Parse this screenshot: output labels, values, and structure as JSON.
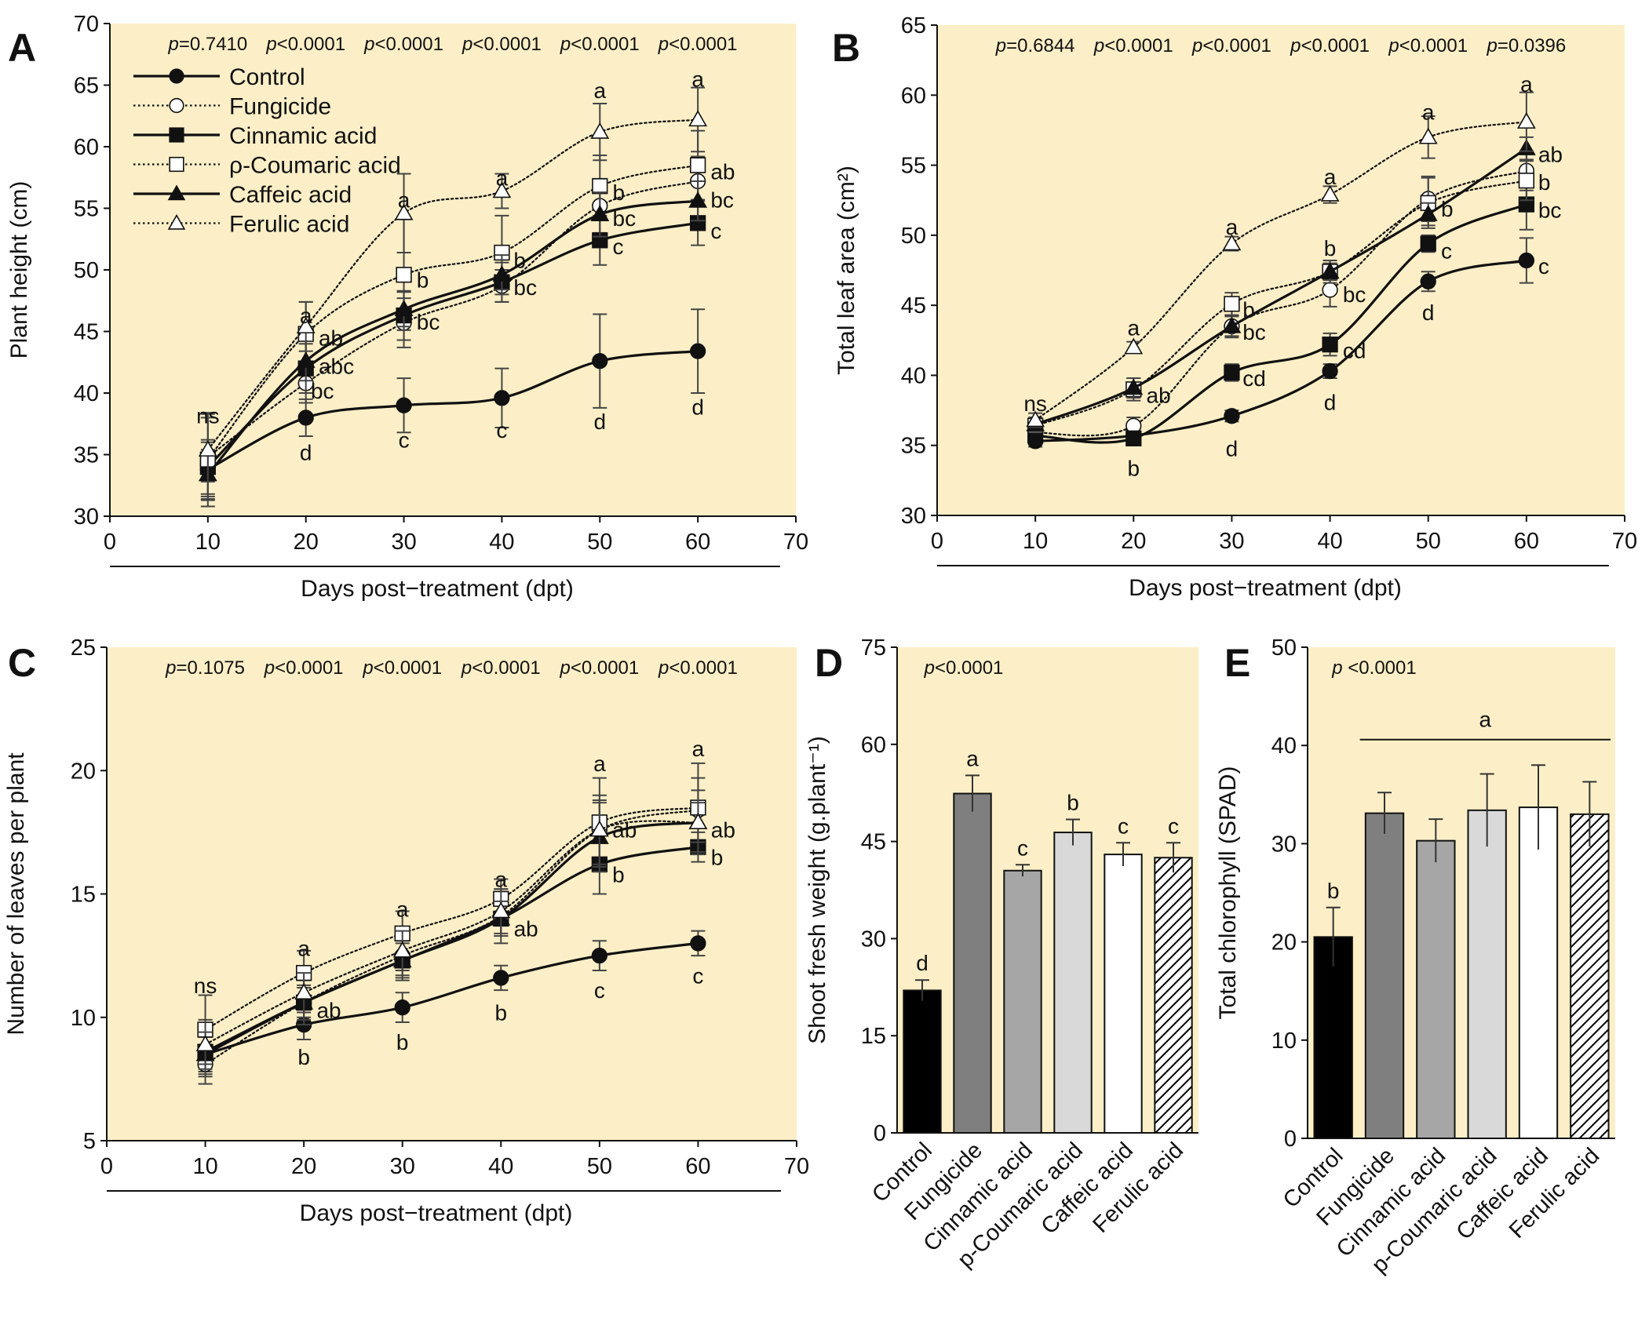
{
  "figure": {
    "colors": {
      "panel_bg": "#fcefc7",
      "axis": "#111111"
    },
    "legend": [
      {
        "name": "Control",
        "line": "solid",
        "marker": "circle",
        "fill": "#111111"
      },
      {
        "name": "Fungicide",
        "line": "dotted",
        "marker": "circle",
        "fill": "#ffffff"
      },
      {
        "name": "Cinnamic acid",
        "line": "solid",
        "marker": "square",
        "fill": "#111111"
      },
      {
        "name": "ρ-Coumaric acid",
        "line": "dotted",
        "marker": "square",
        "fill": "#ffffff"
      },
      {
        "name": "Caffeic acid",
        "line": "solid",
        "marker": "triangle",
        "fill": "#111111"
      },
      {
        "name": "Ferulic acid",
        "line": "dotted",
        "marker": "triangle",
        "fill": "#ffffff"
      }
    ]
  },
  "chart_data": [
    {
      "panel": "A",
      "type": "line",
      "xlabel": "Days post−treatment  (dpt)",
      "ylabel": "Plant height (cm)",
      "xlim": [
        0,
        70
      ],
      "ylim": [
        30,
        70
      ],
      "xticks": [
        0,
        10,
        20,
        30,
        40,
        50,
        60,
        70
      ],
      "yticks": [
        30,
        35,
        40,
        45,
        50,
        55,
        60,
        65,
        70
      ],
      "x": [
        10,
        20,
        30,
        40,
        50,
        60
      ],
      "p_values": [
        "p=0.7410",
        "p<0.0001",
        "p<0.0001",
        "p<0.0001",
        "p<0.0001",
        "p<0.0001"
      ],
      "series": [
        {
          "name": "Control",
          "values": [
            33.8,
            38.0,
            39.0,
            39.6,
            42.6,
            43.4
          ],
          "errors": [
            2.2,
            1.5,
            2.2,
            2.4,
            3.8,
            3.4
          ]
        },
        {
          "name": "Fungicide",
          "values": [
            34.8,
            40.8,
            45.7,
            48.7,
            55.2,
            57.2
          ],
          "errors": [
            3.5,
            1.6,
            2.0,
            1.3,
            2.2,
            2.0
          ]
        },
        {
          "name": "Cinnamic acid",
          "values": [
            34.0,
            42.0,
            46.3,
            49.0,
            52.4,
            53.8
          ],
          "errors": [
            2.2,
            2.0,
            2.0,
            1.6,
            2.0,
            1.8
          ]
        },
        {
          "name": "ρ-Coumaric acid",
          "values": [
            34.6,
            44.8,
            49.6,
            51.4,
            56.8,
            58.5
          ],
          "errors": [
            3.8,
            2.6,
            4.5,
            3.0,
            2.5,
            2.8
          ]
        },
        {
          "name": "Caffeic acid",
          "values": [
            33.4,
            42.6,
            46.8,
            49.6,
            54.5,
            55.6
          ],
          "errors": [
            2.0,
            1.6,
            1.4,
            1.6,
            1.8,
            1.6
          ]
        },
        {
          "name": "Ferulic acid",
          "values": [
            35.4,
            45.4,
            54.6,
            56.4,
            61.2,
            62.2
          ],
          "errors": [
            2.6,
            2.0,
            3.2,
            1.4,
            2.3,
            2.6
          ]
        }
      ],
      "letters": [
        {
          "x": 10,
          "y": 38.2,
          "text": "ns"
        },
        {
          "x": 20,
          "y": 46.3,
          "text": "a"
        },
        {
          "x": 21.3,
          "y": 44.5,
          "text": "ab",
          "anchor": "start"
        },
        {
          "x": 21.3,
          "y": 42.2,
          "text": "abc",
          "anchor": "start"
        },
        {
          "x": 20.5,
          "y": 40.2,
          "text": "bc",
          "anchor": "start"
        },
        {
          "x": 20,
          "y": 35.2,
          "text": "d"
        },
        {
          "x": 30,
          "y": 55.7,
          "text": "a"
        },
        {
          "x": 31.3,
          "y": 49.2,
          "text": "b",
          "anchor": "start"
        },
        {
          "x": 31.3,
          "y": 45.8,
          "text": "bc",
          "anchor": "start"
        },
        {
          "x": 30,
          "y": 36.2,
          "text": "c"
        },
        {
          "x": 40,
          "y": 57.5,
          "text": "a"
        },
        {
          "x": 41.2,
          "y": 50.8,
          "text": "b",
          "anchor": "start"
        },
        {
          "x": 41.2,
          "y": 48.6,
          "text": "bc",
          "anchor": "start"
        },
        {
          "x": 40,
          "y": 37.0,
          "text": "c"
        },
        {
          "x": 50,
          "y": 64.6,
          "text": "a"
        },
        {
          "x": 51.3,
          "y": 56.3,
          "text": "b",
          "anchor": "start"
        },
        {
          "x": 51.3,
          "y": 54.2,
          "text": "bc",
          "anchor": "start"
        },
        {
          "x": 51.3,
          "y": 51.9,
          "text": "c",
          "anchor": "start"
        },
        {
          "x": 50,
          "y": 37.7,
          "text": "d"
        },
        {
          "x": 60,
          "y": 65.5,
          "text": "a"
        },
        {
          "x": 61.3,
          "y": 58.0,
          "text": "ab",
          "anchor": "start"
        },
        {
          "x": 61.3,
          "y": 55.7,
          "text": "bc",
          "anchor": "start"
        },
        {
          "x": 61.3,
          "y": 53.2,
          "text": "c",
          "anchor": "start"
        },
        {
          "x": 60,
          "y": 38.9,
          "text": "d"
        }
      ]
    },
    {
      "panel": "B",
      "type": "line",
      "xlabel": "Days post−treatment  (dpt)",
      "ylabel": "Total leaf area (cm²)",
      "xlim": [
        0,
        70
      ],
      "ylim": [
        30,
        65
      ],
      "xticks": [
        0,
        10,
        20,
        30,
        40,
        50,
        60,
        70
      ],
      "yticks": [
        30,
        35,
        40,
        45,
        50,
        55,
        60,
        65
      ],
      "x": [
        10,
        20,
        30,
        40,
        50,
        60
      ],
      "p_values": [
        "p=0.6844",
        "p<0.0001",
        "p<0.0001",
        "p<0.0001",
        "p<0.0001",
        "p=0.0396"
      ],
      "series": [
        {
          "name": "Control",
          "values": [
            35.3,
            35.7,
            37.1,
            40.3,
            46.7,
            48.2
          ],
          "errors": [
            0.4,
            0.4,
            0.4,
            0.5,
            0.7,
            1.6
          ]
        },
        {
          "name": "Fungicide",
          "values": [
            35.9,
            36.4,
            43.5,
            46.1,
            52.6,
            54.6
          ],
          "errors": [
            0.6,
            0.6,
            0.8,
            1.2,
            1.6,
            1.4
          ]
        },
        {
          "name": "Cinnamic acid",
          "values": [
            35.7,
            35.5,
            40.2,
            42.2,
            49.4,
            52.2
          ],
          "errors": [
            0.5,
            0.5,
            0.6,
            0.8,
            0.6,
            1.8
          ]
        },
        {
          "name": "ρ-Coumaric acid",
          "values": [
            36.4,
            39.0,
            45.1,
            47.4,
            52.3,
            53.9
          ],
          "errors": [
            0.5,
            0.8,
            0.8,
            0.8,
            1.8,
            1.4
          ]
        },
        {
          "name": "Caffeic acid",
          "values": [
            36.5,
            39.1,
            43.5,
            47.4,
            51.5,
            56.2
          ],
          "errors": [
            0.5,
            0.7,
            0.7,
            0.6,
            0.8,
            0.8
          ]
        },
        {
          "name": "Ferulic acid",
          "values": [
            36.8,
            42.0,
            49.4,
            52.9,
            57.0,
            58.1
          ],
          "errors": [
            0.5,
            0.4,
            0.5,
            0.6,
            1.5,
            2.1
          ]
        }
      ],
      "letters": [
        {
          "x": 10,
          "y": 38.0,
          "text": "ns"
        },
        {
          "x": 20,
          "y": 43.4,
          "text": "a"
        },
        {
          "x": 21.3,
          "y": 38.6,
          "text": "ab",
          "anchor": "start"
        },
        {
          "x": 20,
          "y": 33.4,
          "text": "b"
        },
        {
          "x": 30,
          "y": 50.6,
          "text": "a"
        },
        {
          "x": 31.1,
          "y": 44.7,
          "text": "b",
          "anchor": "start"
        },
        {
          "x": 31.1,
          "y": 43.1,
          "text": "bc",
          "anchor": "start"
        },
        {
          "x": 31.1,
          "y": 39.8,
          "text": "cd",
          "anchor": "start"
        },
        {
          "x": 30,
          "y": 34.8,
          "text": "d"
        },
        {
          "x": 40,
          "y": 54.2,
          "text": "a"
        },
        {
          "x": 40,
          "y": 49.1,
          "text": "b"
        },
        {
          "x": 41.3,
          "y": 45.8,
          "text": "bc",
          "anchor": "start"
        },
        {
          "x": 41.3,
          "y": 41.8,
          "text": "cd",
          "anchor": "start"
        },
        {
          "x": 40,
          "y": 38.1,
          "text": "d"
        },
        {
          "x": 50,
          "y": 58.8,
          "text": "a"
        },
        {
          "x": 51.3,
          "y": 51.9,
          "text": "b",
          "anchor": "start"
        },
        {
          "x": 51.3,
          "y": 48.9,
          "text": "c",
          "anchor": "start"
        },
        {
          "x": 50,
          "y": 44.5,
          "text": "d"
        },
        {
          "x": 60,
          "y": 60.8,
          "text": "a"
        },
        {
          "x": 61.2,
          "y": 55.8,
          "text": "ab",
          "anchor": "start"
        },
        {
          "x": 61.2,
          "y": 53.8,
          "text": "b",
          "anchor": "start"
        },
        {
          "x": 61.2,
          "y": 51.8,
          "text": "bc",
          "anchor": "start"
        },
        {
          "x": 61.2,
          "y": 47.8,
          "text": "c",
          "anchor": "start"
        }
      ]
    },
    {
      "panel": "C",
      "type": "line",
      "xlabel": "Days post−treatment  (dpt)",
      "ylabel": "Number of leaves per plant",
      "xlim": [
        0,
        70
      ],
      "ylim": [
        5,
        25
      ],
      "xticks": [
        0,
        10,
        20,
        30,
        40,
        50,
        60,
        70
      ],
      "yticks": [
        5,
        10,
        15,
        20,
        25
      ],
      "x": [
        10,
        20,
        30,
        40,
        50,
        60
      ],
      "p_values": [
        "p=0.1075",
        "p<0.0001",
        "p<0.0001",
        "p<0.0001",
        "p<0.0001",
        "p<0.0001"
      ],
      "series": [
        {
          "name": "Control",
          "values": [
            8.5,
            9.7,
            10.4,
            11.6,
            12.5,
            13.0
          ],
          "errors": [
            0.7,
            0.6,
            0.6,
            0.5,
            0.6,
            0.5
          ]
        },
        {
          "name": "Fungicide",
          "values": [
            8.1,
            10.6,
            12.5,
            14.1,
            17.6,
            18.4
          ],
          "errors": [
            0.8,
            0.9,
            0.8,
            1.1,
            1.2,
            1.3
          ]
        },
        {
          "name": "Cinnamic acid",
          "values": [
            8.6,
            10.6,
            12.3,
            14.0,
            16.2,
            16.9
          ],
          "errors": [
            0.9,
            0.6,
            0.8,
            0.7,
            1.2,
            0.6
          ]
        },
        {
          "name": "ρ-Coumaric acid",
          "values": [
            9.5,
            11.8,
            13.4,
            14.8,
            17.9,
            18.5
          ],
          "errors": [
            1.4,
            0.9,
            0.9,
            0.8,
            1.8,
            1.8
          ]
        },
        {
          "name": "Caffeic acid",
          "values": [
            8.5,
            10.6,
            12.3,
            14.0,
            17.3,
            17.9
          ],
          "errors": [
            0.9,
            0.7,
            0.7,
            0.7,
            1.4,
            0.8
          ]
        },
        {
          "name": "Ferulic acid",
          "values": [
            8.9,
            11.0,
            12.7,
            14.3,
            17.6,
            17.9
          ],
          "errors": [
            1.0,
            0.8,
            0.8,
            0.9,
            1.4,
            1.3
          ]
        }
      ],
      "letters": [
        {
          "x": 10,
          "y": 11.3,
          "text": "ns"
        },
        {
          "x": 20,
          "y": 12.8,
          "text": "a"
        },
        {
          "x": 21.3,
          "y": 10.3,
          "text": "ab",
          "anchor": "start"
        },
        {
          "x": 20,
          "y": 8.4,
          "text": "b"
        },
        {
          "x": 30,
          "y": 14.4,
          "text": "a"
        },
        {
          "x": 30,
          "y": 9.0,
          "text": "b"
        },
        {
          "x": 40,
          "y": 15.6,
          "text": "a"
        },
        {
          "x": 41.3,
          "y": 13.6,
          "text": "ab",
          "anchor": "start"
        },
        {
          "x": 40,
          "y": 10.2,
          "text": "b"
        },
        {
          "x": 50,
          "y": 20.3,
          "text": "a"
        },
        {
          "x": 51.3,
          "y": 17.6,
          "text": "ab",
          "anchor": "start"
        },
        {
          "x": 51.3,
          "y": 15.8,
          "text": "b",
          "anchor": "start"
        },
        {
          "x": 50,
          "y": 11.1,
          "text": "c"
        },
        {
          "x": 60,
          "y": 20.9,
          "text": "a"
        },
        {
          "x": 61.3,
          "y": 17.6,
          "text": "ab",
          "anchor": "start"
        },
        {
          "x": 61.3,
          "y": 16.5,
          "text": "b",
          "anchor": "start"
        },
        {
          "x": 60,
          "y": 11.7,
          "text": "c"
        }
      ]
    },
    {
      "panel": "D",
      "type": "bar",
      "ylabel": "Shoot fresh weight (g.plant⁻¹)",
      "ylim": [
        0,
        75
      ],
      "yticks": [
        0,
        15,
        30,
        45,
        60,
        75
      ],
      "p_value": "p<0.0001",
      "categories": [
        "Control",
        "Fungicide",
        "Cinnamic acid",
        "p-Coumaric acid",
        "Caffeic acid",
        "Ferulic acid"
      ],
      "values": [
        22.0,
        52.4,
        40.5,
        46.4,
        43.0,
        42.5
      ],
      "errors": [
        1.6,
        2.8,
        0.9,
        2.0,
        1.8,
        2.3
      ],
      "letters": [
        "d",
        "a",
        "c",
        "b",
        "c",
        "c"
      ],
      "fills": [
        "#000000",
        "#7f7f7f",
        "#a6a6a6",
        "#d9d9d9",
        "#ffffff",
        "hatch"
      ]
    },
    {
      "panel": "E",
      "type": "bar",
      "ylabel": "Total chlorophyll (SPAD)",
      "ylim": [
        0,
        50
      ],
      "yticks": [
        0,
        10,
        20,
        30,
        40,
        50
      ],
      "p_value": "p <0.0001",
      "categories": [
        "Control",
        "Fungicide",
        "Cinnamic acid",
        "p-Coumaric acid",
        "Caffeic acid",
        "Ferulic acid"
      ],
      "values": [
        20.5,
        33.1,
        30.3,
        33.4,
        33.7,
        33.0
      ],
      "errors": [
        3.0,
        2.1,
        2.2,
        3.7,
        4.3,
        3.3
      ],
      "letters": [
        "b"
      ],
      "group_label": "a",
      "fills": [
        "#000000",
        "#7f7f7f",
        "#a6a6a6",
        "#d9d9d9",
        "#ffffff",
        "hatch"
      ]
    }
  ]
}
